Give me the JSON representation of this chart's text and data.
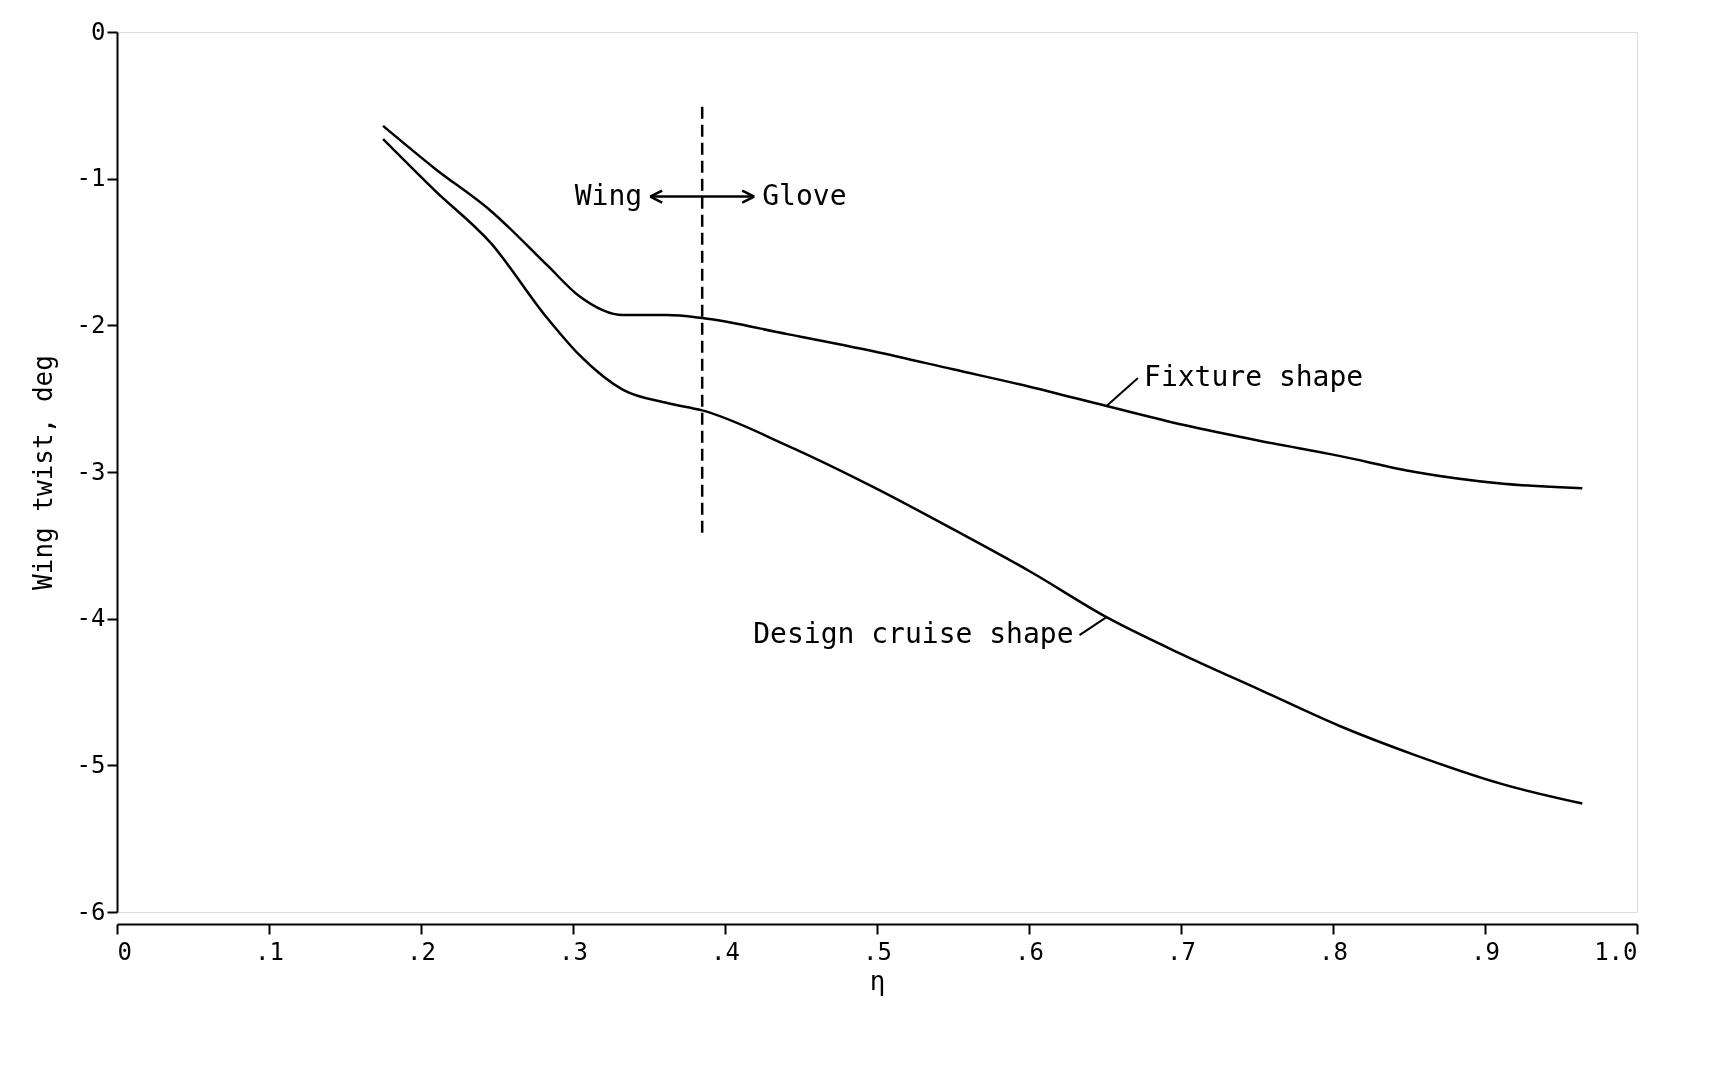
{
  "chart_data": {
    "type": "line",
    "xlabel": "η",
    "ylabel": "Wing twist, deg",
    "xlim": [
      0,
      1.0
    ],
    "ylim": [
      -6,
      0
    ],
    "xticks": [
      0,
      {
        "value": 0.1,
        "label": ".1"
      },
      {
        "value": 0.2,
        "label": ".2"
      },
      {
        "value": 0.3,
        "label": ".3"
      },
      {
        "value": 0.4,
        "label": ".4"
      },
      {
        "value": 0.5,
        "label": ".5"
      },
      {
        "value": 0.6,
        "label": ".6"
      },
      {
        "value": 0.7,
        "label": ".7"
      },
      {
        "value": 0.8,
        "label": ".8"
      },
      {
        "value": 0.9,
        "label": ".9"
      },
      {
        "value": 1.0,
        "label": "1.0"
      }
    ],
    "yticks": [
      0,
      -1,
      -2,
      -3,
      -4,
      -5,
      -6
    ],
    "grid": false,
    "marker": "none",
    "series": [
      {
        "name": "Fixture shape",
        "color": "#000000",
        "line_style": "solid",
        "x": [
          0.175,
          0.209,
          0.246,
          0.283,
          0.304,
          0.333,
          0.362,
          0.385,
          0.441,
          0.499,
          0.55,
          0.601,
          0.651,
          0.702,
          0.753,
          0.804,
          0.854,
          0.912,
          0.964
        ],
        "values": [
          -0.64,
          -0.93,
          -1.22,
          -1.59,
          -1.8,
          -1.93,
          -1.93,
          -1.95,
          -2.06,
          -2.18,
          -2.3,
          -2.42,
          -2.55,
          -2.68,
          -2.79,
          -2.89,
          -3.0,
          -3.08,
          -3.11
        ]
      },
      {
        "name": "Design cruise shape",
        "color": "#000000",
        "line_style": "solid",
        "x": [
          0.175,
          0.209,
          0.246,
          0.283,
          0.304,
          0.333,
          0.362,
          0.385,
          0.441,
          0.499,
          0.55,
          0.601,
          0.651,
          0.702,
          0.753,
          0.804,
          0.854,
          0.912,
          0.964
        ],
        "values": [
          -0.73,
          -1.08,
          -1.44,
          -1.95,
          -2.2,
          -2.44,
          -2.53,
          -2.58,
          -2.82,
          -3.11,
          -3.39,
          -3.68,
          -3.99,
          -4.25,
          -4.49,
          -4.73,
          -4.93,
          -5.13,
          -5.26
        ]
      },
      {
        "color": "#000000",
        "line_style": "dashed",
        "x": [
          0.385,
          0.385
        ],
        "values": [
          -0.51,
          -3.44
        ]
      }
    ],
    "annotations": [
      "Wing",
      "Glove"
    ]
  }
}
